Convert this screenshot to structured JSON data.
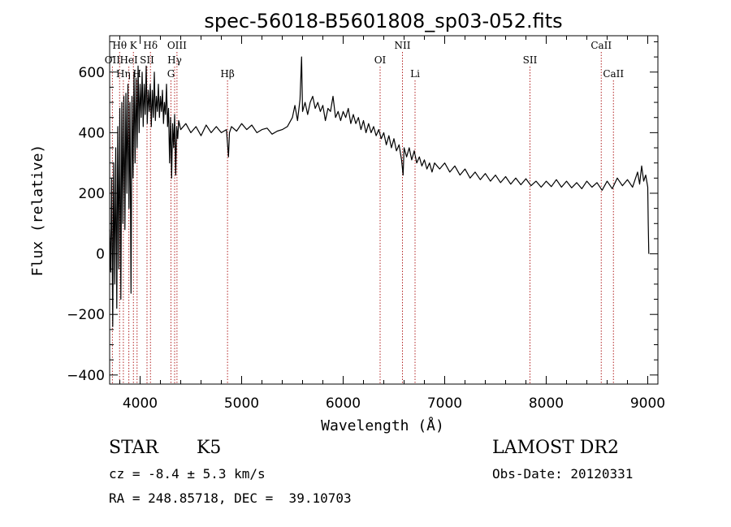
{
  "chart_data": {
    "type": "line",
    "title": "spec-56018-B5601808_sp03-052.fits",
    "xlabel": "Wavelength (Å)",
    "ylabel": "Flux (relative)",
    "xlim": [
      3700,
      9100
    ],
    "ylim": [
      -430,
      720
    ],
    "xticks": [
      4000,
      5000,
      6000,
      7000,
      8000,
      9000
    ],
    "yticks": [
      -400,
      -200,
      0,
      200,
      400,
      600
    ],
    "grid": false,
    "series": [
      {
        "color": "#000000",
        "points": [
          [
            3700,
            80
          ],
          [
            3710,
            -60
          ],
          [
            3720,
            250
          ],
          [
            3730,
            -240
          ],
          [
            3740,
            300
          ],
          [
            3750,
            -100
          ],
          [
            3760,
            350
          ],
          [
            3770,
            -180
          ],
          [
            3780,
            420
          ],
          [
            3790,
            -50
          ],
          [
            3800,
            480
          ],
          [
            3810,
            -150
          ],
          [
            3820,
            500
          ],
          [
            3830,
            100
          ],
          [
            3840,
            520
          ],
          [
            3850,
            80
          ],
          [
            3860,
            530
          ],
          [
            3870,
            200
          ],
          [
            3880,
            560
          ],
          [
            3890,
            150
          ],
          [
            3900,
            500
          ],
          [
            3910,
            -130
          ],
          [
            3920,
            520
          ],
          [
            3930,
            250
          ],
          [
            3940,
            600
          ],
          [
            3950,
            300
          ],
          [
            3960,
            580
          ],
          [
            3970,
            350
          ],
          [
            3980,
            620
          ],
          [
            3990,
            400
          ],
          [
            4000,
            560
          ],
          [
            4010,
            450
          ],
          [
            4020,
            600
          ],
          [
            4030,
            420
          ],
          [
            4040,
            560
          ],
          [
            4050,
            460
          ],
          [
            4060,
            620
          ],
          [
            4070,
            430
          ],
          [
            4080,
            540
          ],
          [
            4090,
            470
          ],
          [
            4100,
            560
          ],
          [
            4110,
            420
          ],
          [
            4120,
            540
          ],
          [
            4130,
            450
          ],
          [
            4140,
            600
          ],
          [
            4150,
            440
          ],
          [
            4160,
            520
          ],
          [
            4170,
            470
          ],
          [
            4180,
            560
          ],
          [
            4190,
            450
          ],
          [
            4200,
            520
          ],
          [
            4210,
            470
          ],
          [
            4220,
            540
          ],
          [
            4230,
            430
          ],
          [
            4240,
            500
          ],
          [
            4250,
            460
          ],
          [
            4260,
            560
          ],
          [
            4270,
            420
          ],
          [
            4280,
            480
          ],
          [
            4290,
            300
          ],
          [
            4300,
            450
          ],
          [
            4310,
            250
          ],
          [
            4320,
            430
          ],
          [
            4330,
            350
          ],
          [
            4340,
            460
          ],
          [
            4350,
            260
          ],
          [
            4360,
            420
          ],
          [
            4370,
            380
          ],
          [
            4380,
            440
          ],
          [
            4400,
            410
          ],
          [
            4450,
            430
          ],
          [
            4500,
            400
          ],
          [
            4550,
            420
          ],
          [
            4600,
            390
          ],
          [
            4650,
            425
          ],
          [
            4700,
            400
          ],
          [
            4750,
            420
          ],
          [
            4800,
            400
          ],
          [
            4850,
            410
          ],
          [
            4870,
            320
          ],
          [
            4880,
            400
          ],
          [
            4900,
            420
          ],
          [
            4950,
            405
          ],
          [
            5000,
            430
          ],
          [
            5050,
            410
          ],
          [
            5100,
            425
          ],
          [
            5150,
            400
          ],
          [
            5200,
            410
          ],
          [
            5250,
            415
          ],
          [
            5300,
            395
          ],
          [
            5350,
            405
          ],
          [
            5400,
            410
          ],
          [
            5450,
            420
          ],
          [
            5500,
            450
          ],
          [
            5525,
            490
          ],
          [
            5550,
            440
          ],
          [
            5575,
            510
          ],
          [
            5590,
            650
          ],
          [
            5600,
            470
          ],
          [
            5625,
            500
          ],
          [
            5650,
            460
          ],
          [
            5675,
            500
          ],
          [
            5700,
            520
          ],
          [
            5725,
            480
          ],
          [
            5750,
            500
          ],
          [
            5775,
            470
          ],
          [
            5800,
            490
          ],
          [
            5825,
            440
          ],
          [
            5850,
            480
          ],
          [
            5875,
            470
          ],
          [
            5900,
            520
          ],
          [
            5925,
            450
          ],
          [
            5950,
            470
          ],
          [
            5975,
            440
          ],
          [
            6000,
            470
          ],
          [
            6025,
            450
          ],
          [
            6050,
            480
          ],
          [
            6075,
            430
          ],
          [
            6100,
            460
          ],
          [
            6125,
            430
          ],
          [
            6150,
            450
          ],
          [
            6175,
            410
          ],
          [
            6200,
            440
          ],
          [
            6225,
            400
          ],
          [
            6250,
            430
          ],
          [
            6275,
            400
          ],
          [
            6300,
            420
          ],
          [
            6325,
            390
          ],
          [
            6350,
            410
          ],
          [
            6375,
            380
          ],
          [
            6400,
            400
          ],
          [
            6425,
            360
          ],
          [
            6450,
            390
          ],
          [
            6475,
            350
          ],
          [
            6500,
            380
          ],
          [
            6525,
            340
          ],
          [
            6550,
            360
          ],
          [
            6575,
            310
          ],
          [
            6590,
            260
          ],
          [
            6600,
            350
          ],
          [
            6625,
            320
          ],
          [
            6650,
            350
          ],
          [
            6675,
            310
          ],
          [
            6700,
            340
          ],
          [
            6725,
            300
          ],
          [
            6750,
            320
          ],
          [
            6775,
            290
          ],
          [
            6800,
            310
          ],
          [
            6825,
            280
          ],
          [
            6850,
            300
          ],
          [
            6875,
            270
          ],
          [
            6900,
            300
          ],
          [
            6950,
            280
          ],
          [
            7000,
            300
          ],
          [
            7050,
            270
          ],
          [
            7100,
            290
          ],
          [
            7150,
            260
          ],
          [
            7200,
            280
          ],
          [
            7250,
            250
          ],
          [
            7300,
            270
          ],
          [
            7350,
            245
          ],
          [
            7400,
            265
          ],
          [
            7450,
            240
          ],
          [
            7500,
            260
          ],
          [
            7550,
            235
          ],
          [
            7600,
            255
          ],
          [
            7650,
            230
          ],
          [
            7700,
            250
          ],
          [
            7750,
            228
          ],
          [
            7800,
            248
          ],
          [
            7850,
            225
          ],
          [
            7900,
            240
          ],
          [
            7950,
            220
          ],
          [
            8000,
            240
          ],
          [
            8050,
            222
          ],
          [
            8100,
            245
          ],
          [
            8150,
            220
          ],
          [
            8200,
            240
          ],
          [
            8250,
            218
          ],
          [
            8300,
            235
          ],
          [
            8350,
            215
          ],
          [
            8400,
            240
          ],
          [
            8450,
            220
          ],
          [
            8500,
            235
          ],
          [
            8550,
            210
          ],
          [
            8600,
            240
          ],
          [
            8650,
            215
          ],
          [
            8700,
            250
          ],
          [
            8750,
            225
          ],
          [
            8800,
            245
          ],
          [
            8850,
            220
          ],
          [
            8900,
            270
          ],
          [
            8920,
            230
          ],
          [
            8940,
            290
          ],
          [
            8960,
            240
          ],
          [
            8980,
            260
          ],
          [
            9000,
            220
          ],
          [
            9005,
            100
          ],
          [
            9010,
            0
          ]
        ]
      }
    ],
    "lines": [
      {
        "label": "Hθ",
        "x": 3798,
        "row": 0
      },
      {
        "label": "K",
        "x": 3934,
        "row": 0
      },
      {
        "label": "Hδ",
        "x": 4102,
        "row": 0
      },
      {
        "label": "OIII",
        "x": 4363,
        "row": 0
      },
      {
        "label": "NII",
        "x": 6584,
        "row": 0
      },
      {
        "label": "CaII",
        "x": 8542,
        "row": 0
      },
      {
        "label": "OII",
        "x": 3727,
        "row": 1
      },
      {
        "label": "HeI",
        "x": 3889,
        "row": 1
      },
      {
        "label": "SII",
        "x": 4068,
        "row": 1
      },
      {
        "label": "Hγ",
        "x": 4340,
        "row": 1
      },
      {
        "label": "OI",
        "x": 6364,
        "row": 1
      },
      {
        "label": "SII",
        "x": 7840,
        "row": 1
      },
      {
        "label": "Hη",
        "x": 3835,
        "row": 2
      },
      {
        "label": "H",
        "x": 3970,
        "row": 2
      },
      {
        "label": "G",
        "x": 4304,
        "row": 2
      },
      {
        "label": "Hβ",
        "x": 4861,
        "row": 2
      },
      {
        "label": "Li",
        "x": 6708,
        "row": 2
      },
      {
        "label": "CaII",
        "x": 8662,
        "row": 2
      }
    ]
  },
  "caption": {
    "class_label": "STAR",
    "subclass": "K5",
    "cz_line": "cz = -8.4 ± 5.3 km/s",
    "coords_line": "RA = 248.85718, DEC =  39.10703",
    "survey": "LAMOST DR2",
    "obs_date": "Obs-Date: 20120331"
  }
}
